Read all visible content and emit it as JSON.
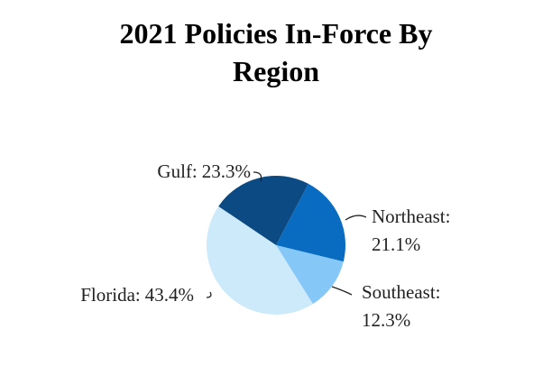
{
  "chart_data": {
    "type": "pie",
    "title": "2021 Policies In-Force By Region",
    "categories": [
      "Gulf:",
      "Northeast:",
      "Southeast:",
      "Florida:"
    ],
    "values": [
      23.3,
      21.1,
      12.3,
      43.4
    ],
    "value_labels": [
      "23.3%",
      "21.1%",
      "12.3%",
      "43.4%"
    ],
    "colors": [
      "#0b4a82",
      "#0a6cc0",
      "#85c8f8",
      "#cdeafb"
    ]
  }
}
